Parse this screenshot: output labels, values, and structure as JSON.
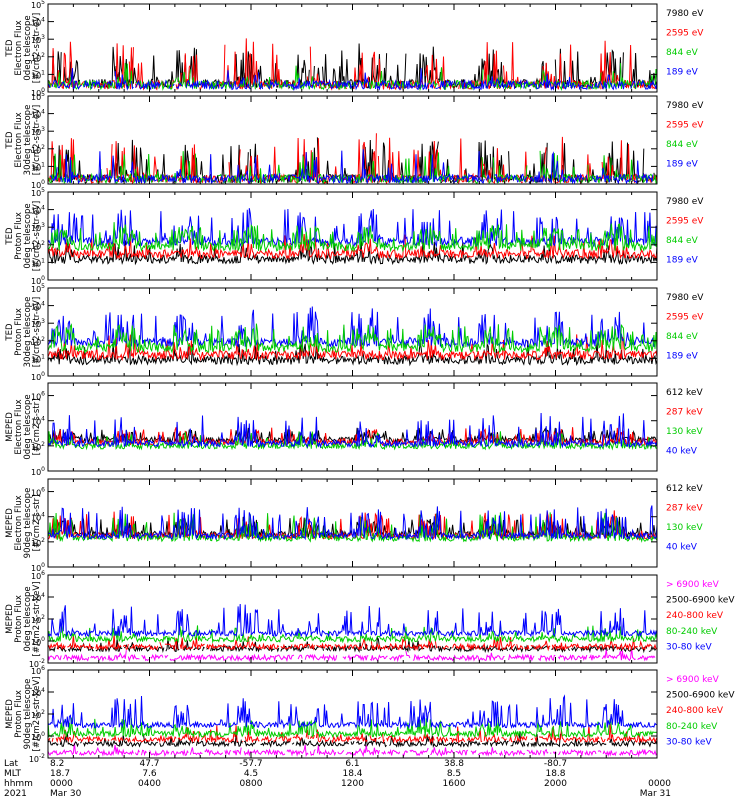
{
  "chart_data": [
    {
      "type": "line",
      "ylabel": [
        "TED",
        "Electron Flux",
        "0deg telescope",
        "[#/cm2-s-str-eV]"
      ],
      "yscale": "log",
      "ylim": [
        1,
        100000
      ],
      "ytick_values": [
        1,
        10,
        100,
        1000,
        10000,
        100000
      ],
      "ytick_labels": [
        [
          "10",
          "0"
        ],
        [
          "10",
          "1"
        ],
        [
          "10",
          "2"
        ],
        [
          "10",
          "3"
        ],
        [
          "10",
          "4"
        ],
        [
          "10",
          "5"
        ]
      ],
      "series": [
        {
          "name": "7980 eV",
          "color": "#000000",
          "baseline": 3,
          "peaks": 2.1,
          "density": 0.55,
          "gaps": true
        },
        {
          "name": "2595 eV",
          "color": "#ff0000",
          "baseline": 2.5,
          "peaks": 2.6,
          "density": 0.35,
          "gaps": true
        },
        {
          "name": "844 eV",
          "color": "#00cc00",
          "baseline": 2.5,
          "peaks": 1.2,
          "density": 0.15,
          "gaps": true
        },
        {
          "name": "189 eV",
          "color": "#0000ff",
          "baseline": 2.5,
          "peaks": 1.0,
          "density": 0.1,
          "gaps": true
        }
      ]
    },
    {
      "type": "line",
      "ylabel": [
        "TED",
        "Electron Flux",
        "30deg telescope",
        "[#/cm2-s-str-eV]"
      ],
      "yscale": "log",
      "ylim": [
        1,
        100000
      ],
      "ytick_values": [
        1,
        10,
        100,
        1000,
        10000,
        100000
      ],
      "ytick_labels": [
        [
          "10",
          "0"
        ],
        [
          "10",
          "1"
        ],
        [
          "10",
          "2"
        ],
        [
          "10",
          "3"
        ],
        [
          "10",
          "4"
        ],
        [
          "10",
          "5"
        ]
      ],
      "series": [
        {
          "name": "7980 eV",
          "color": "#000000",
          "baseline": 2,
          "peaks": 2.2,
          "density": 0.5,
          "gaps": true
        },
        {
          "name": "2595 eV",
          "color": "#ff0000",
          "baseline": 2,
          "peaks": 2.5,
          "density": 0.35,
          "gaps": true
        },
        {
          "name": "844 eV",
          "color": "#00cc00",
          "baseline": 2,
          "peaks": 1.6,
          "density": 0.2,
          "gaps": true
        },
        {
          "name": "189 eV",
          "color": "#0000ff",
          "baseline": 2,
          "peaks": 1.5,
          "density": 0.2,
          "gaps": true
        }
      ]
    },
    {
      "type": "line",
      "ylabel": [
        "TED",
        "Proton Flux",
        "0deg telescope",
        "[#/cm2-s-str-eV]"
      ],
      "yscale": "log",
      "ylim": [
        1,
        100000
      ],
      "ytick_values": [
        1,
        10,
        100,
        1000,
        10000,
        100000
      ],
      "ytick_labels": [
        [
          "10",
          "0"
        ],
        [
          "10",
          "1"
        ],
        [
          "10",
          "2"
        ],
        [
          "10",
          "3"
        ],
        [
          "10",
          "4"
        ],
        [
          "10",
          "5"
        ]
      ],
      "series": [
        {
          "name": "7980 eV",
          "color": "#000000",
          "baseline": 15,
          "peaks": 1.0,
          "density": 0.3,
          "gaps": false
        },
        {
          "name": "2595 eV",
          "color": "#ff0000",
          "baseline": 30,
          "peaks": 1.0,
          "density": 0.3,
          "gaps": false
        },
        {
          "name": "189 eV",
          "color": "#0000ff",
          "baseline": 150,
          "peaks": 1.8,
          "density": 0.5,
          "gaps": false
        },
        {
          "name": "844 eV",
          "color": "#00cc00",
          "baseline": 80,
          "peaks": 1.2,
          "density": 0.9,
          "gaps": false
        }
      ]
    },
    {
      "type": "line",
      "ylabel": [
        "TED",
        "Proton Flux",
        "30deg telescope",
        "[#/cm2-s-str-eV]"
      ],
      "yscale": "log",
      "ylim": [
        1,
        100000
      ],
      "ytick_values": [
        1,
        10,
        100,
        1000,
        10000,
        100000
      ],
      "ytick_labels": [
        [
          "10",
          "0"
        ],
        [
          "10",
          "1"
        ],
        [
          "10",
          "2"
        ],
        [
          "10",
          "3"
        ],
        [
          "10",
          "4"
        ],
        [
          "10",
          "5"
        ]
      ],
      "series": [
        {
          "name": "7980 eV",
          "color": "#000000",
          "baseline": 8,
          "peaks": 1.0,
          "density": 0.3,
          "gaps": false
        },
        {
          "name": "2595 eV",
          "color": "#ff0000",
          "baseline": 15,
          "peaks": 1.0,
          "density": 0.3,
          "gaps": false
        },
        {
          "name": "189 eV",
          "color": "#0000ff",
          "baseline": 80,
          "peaks": 1.8,
          "density": 0.5,
          "gaps": false
        },
        {
          "name": "844 eV",
          "color": "#00cc00",
          "baseline": 40,
          "peaks": 1.2,
          "density": 0.9,
          "gaps": false
        }
      ]
    },
    {
      "type": "line",
      "ylabel": [
        "MEPED",
        "Electron Flux",
        "0deg telescope",
        "[#/cm2-s-str]"
      ],
      "yscale": "log",
      "ylim": [
        1,
        10000000
      ],
      "ytick_values": [
        1,
        100,
        10000,
        1000000
      ],
      "ytick_labels": [
        [
          "10",
          "0"
        ],
        [
          "10",
          "2"
        ],
        [
          "10",
          "4"
        ],
        [
          "10",
          "6"
        ]
      ],
      "series": [
        {
          "name": "612 keV",
          "color": "#000000",
          "baseline": 300,
          "peaks": 0.8,
          "density": 0.6,
          "gaps": false
        },
        {
          "name": "287 keV",
          "color": "#ff0000",
          "baseline": 200,
          "peaks": 1.0,
          "density": 0.5,
          "gaps": false
        },
        {
          "name": "130 keV",
          "color": "#00cc00",
          "baseline": 100,
          "peaks": 1.1,
          "density": 0.3,
          "gaps": false
        },
        {
          "name": "40 keV",
          "color": "#0000ff",
          "baseline": 150,
          "peaks": 2.2,
          "density": 0.35,
          "gaps": false
        }
      ]
    },
    {
      "type": "line",
      "ylabel": [
        "MEPED",
        "Electron Flux",
        "90deg telescope",
        "[#/cm2-s-str]"
      ],
      "yscale": "log",
      "ylim": [
        1,
        10000000
      ],
      "ytick_values": [
        1,
        100,
        10000,
        1000000
      ],
      "ytick_labels": [
        [
          "10",
          "0"
        ],
        [
          "10",
          "2"
        ],
        [
          "10",
          "4"
        ],
        [
          "10",
          "6"
        ]
      ],
      "series": [
        {
          "name": "612 keV",
          "color": "#000000",
          "baseline": 400,
          "peaks": 1.3,
          "density": 0.7,
          "gaps": false
        },
        {
          "name": "287 keV",
          "color": "#ff0000",
          "baseline": 300,
          "peaks": 1.8,
          "density": 0.6,
          "gaps": false
        },
        {
          "name": "130 keV",
          "color": "#00cc00",
          "baseline": 200,
          "peaks": 2.0,
          "density": 0.5,
          "gaps": false
        },
        {
          "name": "40 keV",
          "color": "#0000ff",
          "baseline": 300,
          "peaks": 2.3,
          "density": 0.5,
          "gaps": false
        }
      ]
    },
    {
      "type": "line",
      "ylabel": [
        "MEPED",
        "Proton Flux",
        "0deg telescope",
        "[#/cm2-s-str-keV]"
      ],
      "yscale": "log",
      "ylim": [
        0.01,
        1000000
      ],
      "ytick_values": [
        0.01,
        1,
        100,
        10000,
        1000000
      ],
      "ytick_labels": [
        [
          "10",
          "-2"
        ],
        [
          "10",
          "0"
        ],
        [
          "10",
          "2"
        ],
        [
          "10",
          "4"
        ],
        [
          "10",
          "6"
        ]
      ],
      "series": [
        {
          "name": "> 6900 keV",
          "color": "#ff00ff",
          "baseline": 0.03,
          "peaks": 0.8,
          "density": 0.08,
          "gaps": true
        },
        {
          "name": "2500-6900 keV",
          "color": "#000000",
          "baseline": 0.2,
          "peaks": 0.9,
          "density": 0.1,
          "gaps": true
        },
        {
          "name": "240-800 keV",
          "color": "#ff0000",
          "baseline": 0.3,
          "peaks": 1.0,
          "density": 0.15,
          "gaps": true
        },
        {
          "name": "80-240 keV",
          "color": "#00cc00",
          "baseline": 1.5,
          "peaks": 1.2,
          "density": 0.3,
          "gaps": false
        },
        {
          "name": "30-80 keV",
          "color": "#0000ff",
          "baseline": 5,
          "peaks": 2.5,
          "density": 0.35,
          "gaps": false
        }
      ]
    },
    {
      "type": "line",
      "ylabel": [
        "MEPED",
        "Proton Flux",
        "90deg telescope",
        "[#/cm2-s-str-keV]"
      ],
      "yscale": "log",
      "ylim": [
        0.01,
        1000000
      ],
      "ytick_values": [
        0.01,
        1,
        100,
        10000,
        1000000
      ],
      "ytick_labels": [
        [
          "10",
          "-2"
        ],
        [
          "10",
          "0"
        ],
        [
          "10",
          "2"
        ],
        [
          "10",
          "4"
        ],
        [
          "10",
          "6"
        ]
      ],
      "series": [
        {
          "name": "> 6900 keV",
          "color": "#ff00ff",
          "baseline": 0.03,
          "peaks": 0.8,
          "density": 0.08,
          "gaps": true
        },
        {
          "name": "2500-6900 keV",
          "color": "#000000",
          "baseline": 0.2,
          "peaks": 1.0,
          "density": 0.12,
          "gaps": true
        },
        {
          "name": "240-800 keV",
          "color": "#ff0000",
          "baseline": 0.5,
          "peaks": 1.2,
          "density": 0.2,
          "gaps": true
        },
        {
          "name": "80-240 keV",
          "color": "#00cc00",
          "baseline": 1.5,
          "peaks": 1.3,
          "density": 0.4,
          "gaps": false
        },
        {
          "name": "30-80 keV",
          "color": "#0000ff",
          "baseline": 10,
          "peaks": 2.5,
          "density": 0.4,
          "gaps": false
        }
      ]
    }
  ],
  "time_axis": {
    "start": "2021-03-30 00:00",
    "end": "2021-03-31 00:00",
    "major_tick_hours": [
      0,
      4,
      8,
      12,
      16,
      20,
      24
    ],
    "row_labels": [
      "Lat",
      "MLT",
      "hhmm",
      "2021"
    ],
    "columns": [
      {
        "hour": 0,
        "lat": "8.2",
        "mlt": "18.7",
        "hhmm": "0000",
        "date": "Mar 30"
      },
      {
        "hour": 4,
        "lat": "47.7",
        "mlt": "7.6",
        "hhmm": "0400",
        "date": ""
      },
      {
        "hour": 8,
        "lat": "-57.7",
        "mlt": "4.5",
        "hhmm": "0800",
        "date": ""
      },
      {
        "hour": 12,
        "lat": "6.1",
        "mlt": "18.4",
        "hhmm": "1200",
        "date": ""
      },
      {
        "hour": 16,
        "lat": "38.8",
        "mlt": "8.5",
        "hhmm": "1600",
        "date": ""
      },
      {
        "hour": 20,
        "lat": "-80.7",
        "mlt": "18.8",
        "hhmm": "2000",
        "date": ""
      },
      {
        "hour": 24,
        "lat": "",
        "mlt": "",
        "hhmm": "0000",
        "date": "Mar 31"
      }
    ]
  }
}
